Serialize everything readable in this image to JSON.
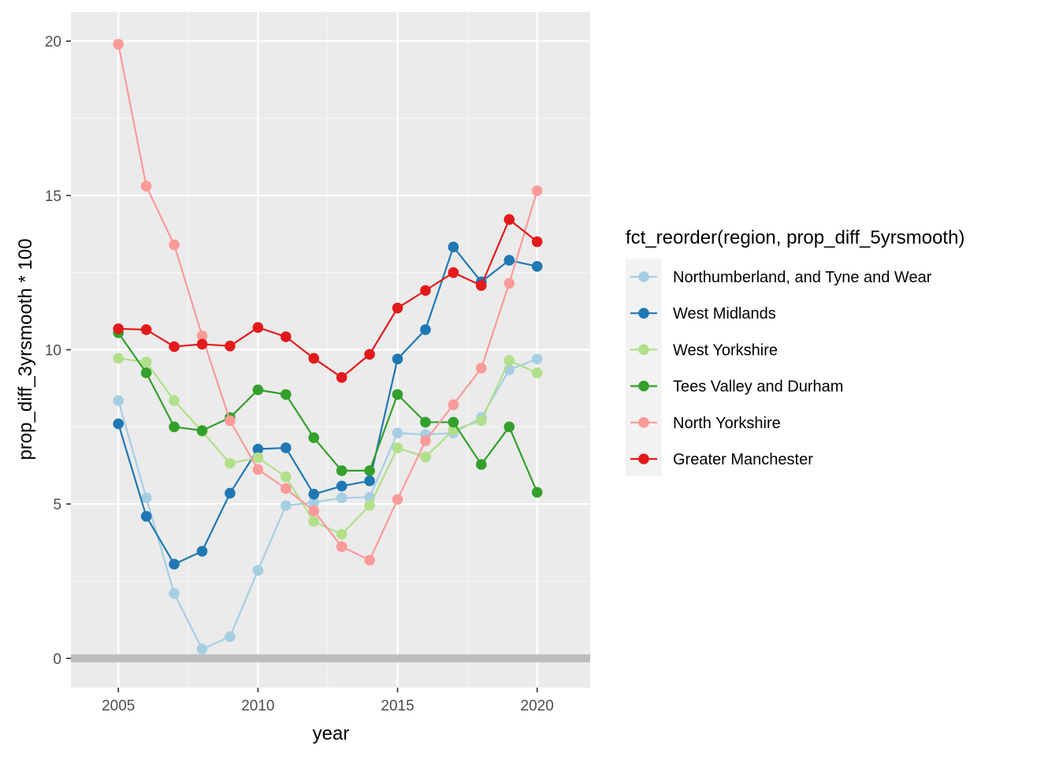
{
  "chart_data": {
    "type": "line",
    "xlabel": "year",
    "ylabel": "prop_diff_3yrsmooth * 100",
    "xlim": [
      2003.3,
      2021.9
    ],
    "ylim": [
      -0.95,
      20.95
    ],
    "xticks": [
      2005,
      2010,
      2015,
      2020
    ],
    "xtick_labels": [
      "2005",
      "2010",
      "2015",
      "2020"
    ],
    "yticks": [
      0,
      5,
      10,
      15,
      20
    ],
    "ytick_labels": [
      "0",
      "5",
      "10",
      "15",
      "20"
    ],
    "grid": true,
    "reference_line": {
      "y": 0,
      "color": "#bdbdbd"
    },
    "legend": {
      "title": "fct_reorder(region, prop_diff_5yrsmooth)",
      "position": "right"
    },
    "x": [
      2005,
      2006,
      2007,
      2008,
      2009,
      2010,
      2011,
      2012,
      2013,
      2014,
      2015,
      2016,
      2017,
      2018,
      2019,
      2020
    ],
    "series": [
      {
        "name": "Northumberland, and Tyne and Wear",
        "color": "#a6cee3",
        "values": [
          8.35,
          5.2,
          2.1,
          0.3,
          0.7,
          2.85,
          4.95,
          5.05,
          5.2,
          5.22,
          7.3,
          7.25,
          7.3,
          7.8,
          9.35,
          9.7
        ]
      },
      {
        "name": "West Midlands",
        "color": "#1f78b4",
        "values": [
          7.6,
          4.6,
          3.05,
          3.47,
          5.35,
          6.78,
          6.82,
          5.32,
          5.58,
          5.75,
          9.7,
          10.65,
          13.33,
          12.2,
          12.9,
          12.7
        ]
      },
      {
        "name": "West Yorkshire",
        "color": "#b2df8a",
        "values": [
          9.72,
          9.6,
          8.35,
          7.35,
          6.32,
          6.5,
          5.88,
          4.43,
          4.02,
          4.95,
          6.82,
          6.52,
          7.4,
          7.7,
          9.65,
          9.25
        ]
      },
      {
        "name": "Tees Valley and Durham",
        "color": "#33a02c",
        "values": [
          10.55,
          9.25,
          7.5,
          7.38,
          7.8,
          8.7,
          8.55,
          7.15,
          6.08,
          6.08,
          8.55,
          7.65,
          7.65,
          6.28,
          7.5,
          5.38
        ]
      },
      {
        "name": "North Yorkshire",
        "color": "#fb9a99",
        "values": [
          19.9,
          15.3,
          13.4,
          10.45,
          7.7,
          6.12,
          5.5,
          4.78,
          3.62,
          3.18,
          5.15,
          7.05,
          8.22,
          9.4,
          12.15,
          15.15
        ]
      },
      {
        "name": "Greater Manchester",
        "color": "#e31a1c",
        "values": [
          10.68,
          10.65,
          10.1,
          10.18,
          10.12,
          10.72,
          10.42,
          9.72,
          9.1,
          9.85,
          11.35,
          11.92,
          12.5,
          12.08,
          14.22,
          13.5
        ]
      }
    ]
  }
}
